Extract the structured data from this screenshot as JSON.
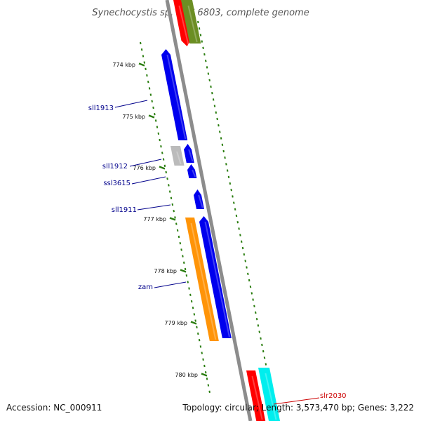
{
  "title": "Synechocystis sp. PCC 6803, complete genome",
  "footer": {
    "accession": "Accession: NC_000911",
    "summary": "Topology: circular; Length: 3,573,470 bp; Genes: 3,222"
  },
  "colors": {
    "backbone": "#8c8c8c",
    "tick": "#2a7d0f",
    "label_blue": "#00008b",
    "label_red": "#cc0000",
    "gene_blue": "#0000ee",
    "gene_orange": "#ff9408",
    "gene_gray": "#bbbbbb",
    "gene_red": "#ff0000",
    "gene_olive": "#6b8e23",
    "gene_cyan": "#00eeee"
  },
  "scale": {
    "unit": "kbp",
    "ticks": [
      {
        "label": "774 kbp"
      },
      {
        "label": "775 kbp"
      },
      {
        "label": "776 kbp"
      },
      {
        "label": "777 kbp"
      },
      {
        "label": "778 kbp"
      },
      {
        "label": "779 kbp"
      },
      {
        "label": "780 kbp"
      }
    ]
  },
  "gene_labels": [
    {
      "name": "sll1913"
    },
    {
      "name": "sll1912"
    },
    {
      "name": "ssl3615"
    },
    {
      "name": "sll1911"
    },
    {
      "name": "zam"
    },
    {
      "name": "slr2030"
    }
  ]
}
